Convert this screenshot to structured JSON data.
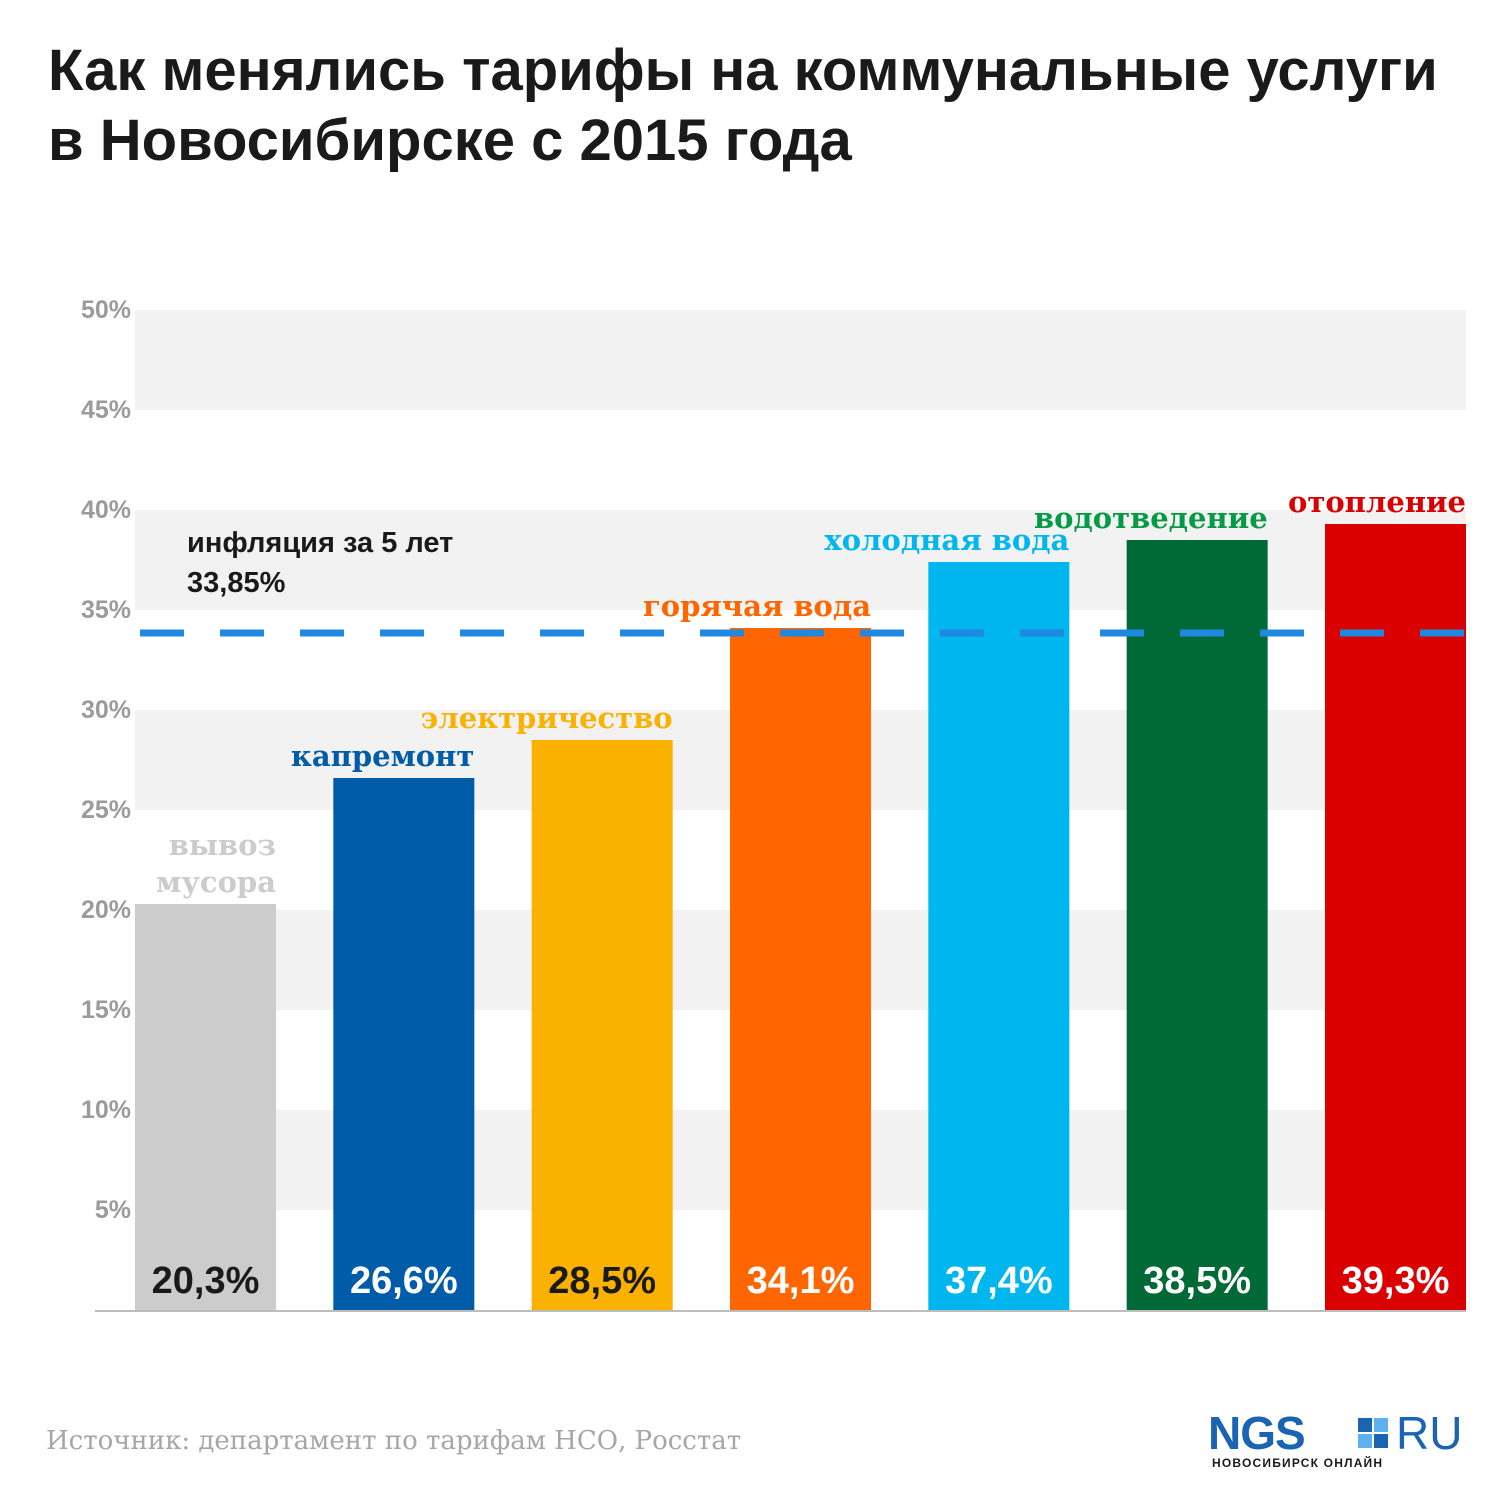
{
  "title": {
    "line1": "Как менялись тарифы на коммунальные услуги",
    "line2": "в Новосибирске с 2015 года"
  },
  "chart_data": {
    "type": "bar",
    "categories": [
      "вывоз мусора",
      "капремонт",
      "электричество",
      "горячая вода",
      "холодная вода",
      "водотведение",
      "отопление"
    ],
    "values": [
      20.3,
      26.6,
      28.5,
      34.1,
      37.4,
      38.5,
      39.3
    ],
    "value_labels": [
      "20,3%",
      "26,6%",
      "28,5%",
      "34,1%",
      "37,4%",
      "38,5%",
      "39,3%"
    ],
    "colors": [
      "#cccccc",
      "#005ba8",
      "#fbb100",
      "#ff6600",
      "#00b6ee",
      "#006a36",
      "#db0000"
    ],
    "label_colors": [
      "#cccccc",
      "#005ba8",
      "#fbb100",
      "#ff6600",
      "#00b6ee",
      "#079a46",
      "#db0000"
    ],
    "value_label_colors": [
      "#1a1a1a",
      "#ffffff",
      "#1a1a1a",
      "#ffffff",
      "#ffffff",
      "#ffffff",
      "#ffffff"
    ],
    "ylim": [
      0,
      50
    ],
    "yticks": [
      5,
      10,
      15,
      20,
      25,
      30,
      35,
      40,
      45,
      50
    ],
    "ytick_labels": [
      "5%",
      "10%",
      "15%",
      "20%",
      "25%",
      "30%",
      "35%",
      "40%",
      "45%",
      "50%"
    ],
    "reference_line": {
      "value": 33.85,
      "label_line1": "инфляция за 5 лет",
      "label_line2": "33,85%",
      "color": "#1f88e0"
    },
    "xlabel": "",
    "ylabel": ""
  },
  "footer": {
    "source": "Источник: департамент по тарифам НСО, Росстат"
  },
  "logo": {
    "word": "NGS",
    "ru": "RU",
    "subtitle": "НОВОСИБИРСК ОНЛАЙН",
    "color": "#1b64b4"
  }
}
